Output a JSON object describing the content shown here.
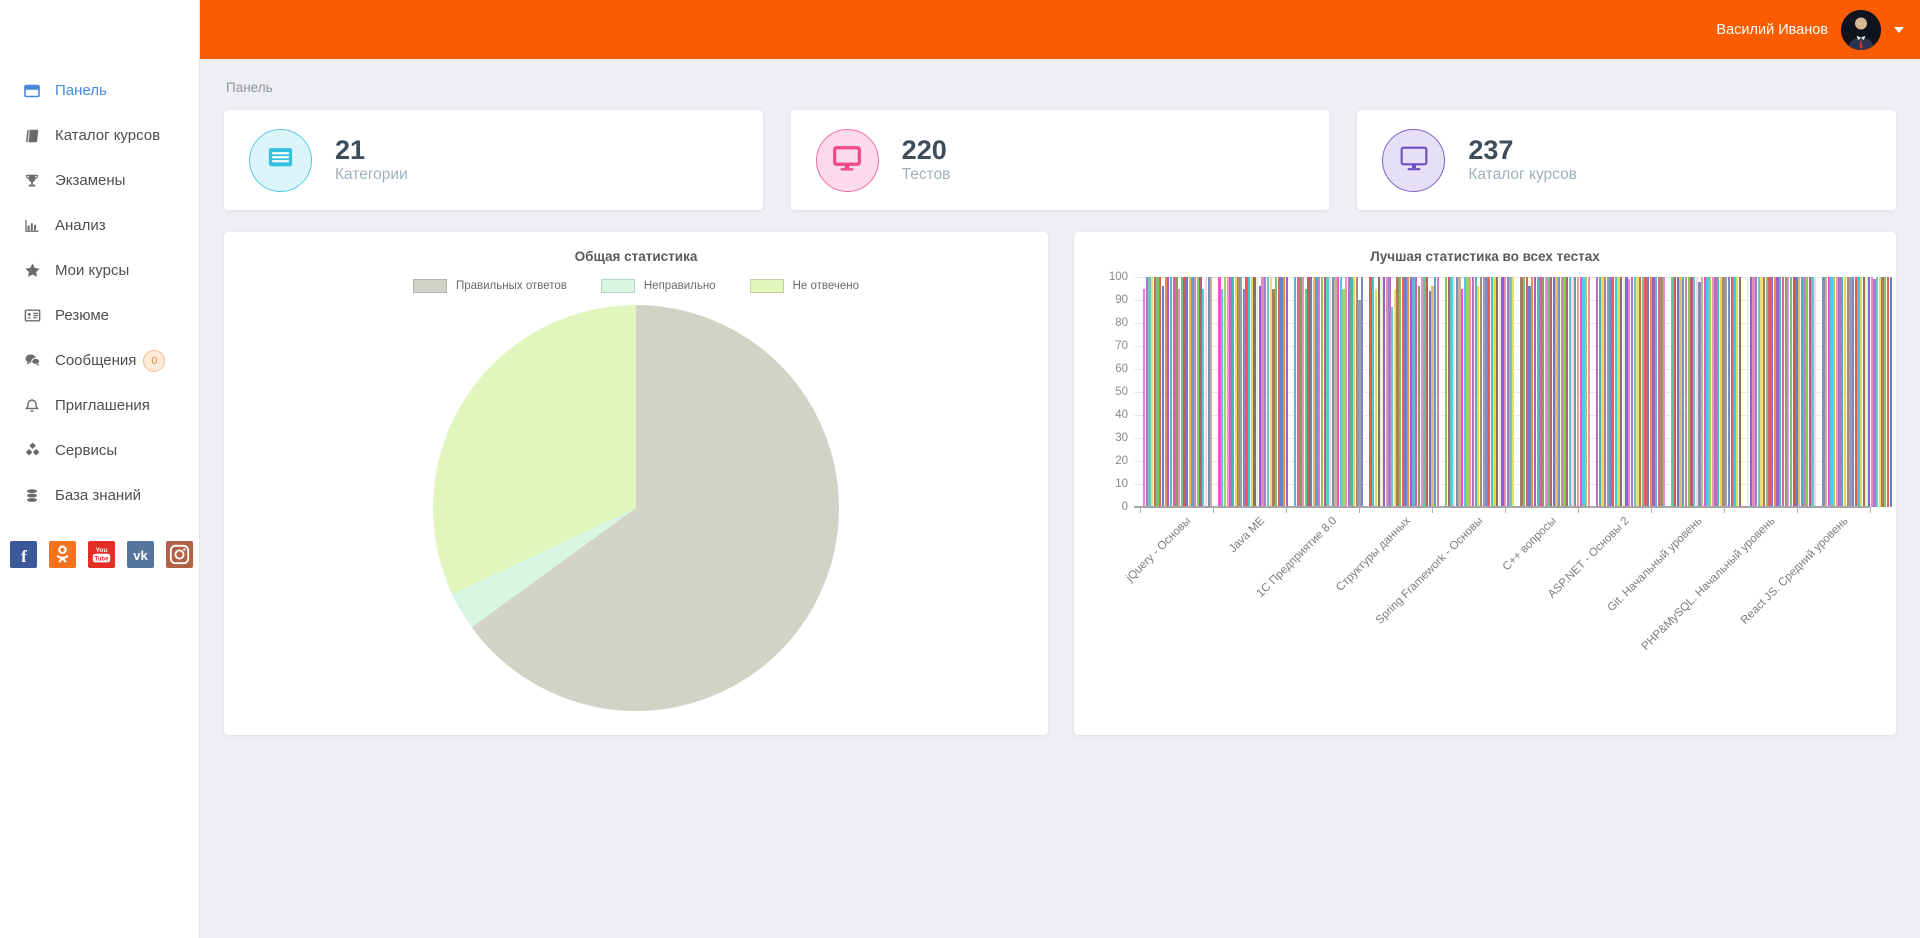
{
  "header": {
    "accent_color": "#fb5c00",
    "user_name": "Василий Иванов"
  },
  "breadcrumb": "Панель",
  "sidebar": {
    "active_color": "#4a89dc",
    "icon_color": "#6b6b6b",
    "items": [
      {
        "key": "dashboard",
        "icon": "window",
        "label": "Панель",
        "active": true
      },
      {
        "key": "course-catalog",
        "icon": "book",
        "label": "Каталог курсов"
      },
      {
        "key": "exams",
        "icon": "trophy",
        "label": "Экзамены"
      },
      {
        "key": "analysis",
        "icon": "chart",
        "label": "Анализ"
      },
      {
        "key": "my-courses",
        "icon": "star",
        "label": "Мои курсы"
      },
      {
        "key": "resume",
        "icon": "id-card",
        "label": "Резюме"
      },
      {
        "key": "messages",
        "icon": "chat",
        "label": "Сообщения",
        "badge": "0"
      },
      {
        "key": "invitations",
        "icon": "bell",
        "label": "Приглашения"
      },
      {
        "key": "services",
        "icon": "cubes",
        "label": "Сервисы"
      },
      {
        "key": "knowledge-base",
        "icon": "database",
        "label": "База знаний"
      }
    ],
    "social": [
      {
        "key": "facebook",
        "color": "#3b5998"
      },
      {
        "key": "odnoklassniki",
        "color": "#f4731c"
      },
      {
        "key": "youtube",
        "color": "#e52d27"
      },
      {
        "key": "vk",
        "color": "#54759c"
      },
      {
        "key": "instagram",
        "color": "#b06247"
      }
    ]
  },
  "stats": [
    {
      "value": "21",
      "label": "Категории",
      "icon": "list",
      "icon_color": "#35c2e2",
      "circle_bg": "#dcf5fb",
      "circle_border": "#57cbe4"
    },
    {
      "value": "220",
      "label": "Тестов",
      "icon": "monitor-filled",
      "icon_color": "#f2478a",
      "circle_bg": "#fbdbe9",
      "circle_border": "#ef6ea4"
    },
    {
      "value": "237",
      "label": "Каталог курсов",
      "icon": "monitor-outline",
      "icon_color": "#6a4ec2",
      "circle_bg": "#e5e0f6",
      "circle_border": "#7e62c9"
    }
  ],
  "chart_data": [
    {
      "type": "pie",
      "title": "Общая статистика",
      "legend_position": "top",
      "start_angle": "top",
      "direction": "clockwise",
      "slices": [
        {
          "label": "Правильных ответов",
          "value": 65,
          "color": "#d2d2c6"
        },
        {
          "label": "Неправильно",
          "value": 3,
          "color": "#d8f6e3"
        },
        {
          "label": "Не отвечено",
          "value": 32,
          "color": "#e0f6bc"
        }
      ]
    },
    {
      "type": "bar",
      "title": "Лучшая статистика во всех тестах",
      "xlabel": "",
      "ylabel": "",
      "ylim": [
        0,
        100
      ],
      "yticks": [
        0,
        10,
        20,
        30,
        40,
        50,
        60,
        70,
        80,
        90,
        100
      ],
      "grid": true,
      "legend_position": "none",
      "categories": [
        "jQuery - Основы",
        "Java ME",
        "1С Предприятие 8.0",
        "Структуры данных",
        "Spring Framework - Основы",
        "C++ вопросы",
        "ASP.NET - Основы 2",
        "Git. Начальный уровень",
        "PHP&MySQL. Начальный уровень",
        "React JS. Средний уровень"
      ],
      "bar_values": [
        [
          95,
          100,
          100,
          100,
          100,
          100,
          100,
          96,
          100,
          100,
          100,
          100,
          100,
          95,
          100,
          100,
          100,
          100,
          100,
          100,
          100,
          100,
          95,
          100,
          100,
          100
        ],
        [
          100,
          95,
          100,
          100,
          100,
          100,
          100,
          100,
          100,
          95,
          100,
          100,
          100,
          100,
          100,
          96,
          100,
          100,
          100,
          100,
          95,
          100,
          100,
          100,
          100,
          100
        ],
        [
          100,
          100,
          100,
          100,
          95,
          100,
          100,
          100,
          100,
          100,
          100,
          100,
          100,
          100,
          100,
          100,
          100,
          100,
          95,
          100,
          100,
          100,
          100,
          100,
          90,
          100
        ],
        [
          100,
          100,
          95,
          100,
          100,
          100,
          100,
          100,
          87,
          95,
          100,
          100,
          100,
          100,
          100,
          100,
          100,
          100,
          96,
          100,
          100,
          100,
          94,
          96,
          100,
          100
        ],
        [
          100,
          100,
          100,
          100,
          100,
          100,
          95,
          100,
          100,
          100,
          100,
          100,
          96,
          100,
          100,
          100,
          100,
          100,
          100,
          100,
          100,
          100,
          100,
          100,
          100,
          100
        ],
        [
          100,
          100,
          100,
          96,
          100,
          100,
          100,
          100,
          100,
          100,
          100,
          100,
          100,
          100,
          100,
          100,
          100,
          100,
          100,
          100,
          100,
          100,
          100,
          100,
          100,
          100
        ],
        [
          100,
          100,
          100,
          100,
          100,
          100,
          100,
          100,
          100,
          100,
          100,
          100,
          99,
          100,
          100,
          100,
          100,
          100,
          100,
          100,
          100,
          100,
          100,
          100,
          100,
          100
        ],
        [
          100,
          100,
          100,
          100,
          100,
          100,
          100,
          100,
          100,
          100,
          98,
          100,
          100,
          100,
          100,
          100,
          100,
          100,
          100,
          100,
          100,
          100,
          100,
          100,
          100,
          100
        ],
        [
          100,
          100,
          100,
          100,
          100,
          100,
          100,
          100,
          100,
          100,
          100,
          100,
          100,
          100,
          100,
          100,
          100,
          100,
          100,
          100,
          100,
          100,
          100,
          100,
          100,
          100
        ],
        [
          100,
          100,
          100,
          100,
          100,
          100,
          100,
          100,
          100,
          100,
          100,
          100,
          100,
          100,
          100,
          100,
          100,
          100,
          100,
          99,
          100,
          100,
          100,
          100,
          100,
          100
        ]
      ],
      "palette": [
        "#e48ac2",
        "#a87bd0",
        "#6fc8c0",
        "#e9e06e",
        "#b07a5e",
        "#7cc470",
        "#e06060",
        "#6b7fd6",
        "#e8923f",
        "#a55bc9",
        "#57b7d8",
        "#e0609e",
        "#97975a",
        "#df8ee0",
        "#63c98e",
        "#c95b5b",
        "#7a72cc",
        "#d9c455",
        "#5aa3cc",
        "#cc84b5",
        "#8ac857",
        "#b2607f",
        "#5fc9c9",
        "#f2d9e6",
        "#7a90b5",
        "#c9b28d",
        "#f052d2",
        "#56c3f0",
        "#a3cf66",
        "#f493b5",
        "#bb6cc9",
        "#52b5a9",
        "#f2d455",
        "#a68a7f",
        "#93a2ad",
        "#7d88cc",
        "#ee5a52",
        "#3ec8da",
        "#d6e15a",
        "#916e60",
        "#e8f2d9",
        "#8f5fd0"
      ]
    }
  ]
}
